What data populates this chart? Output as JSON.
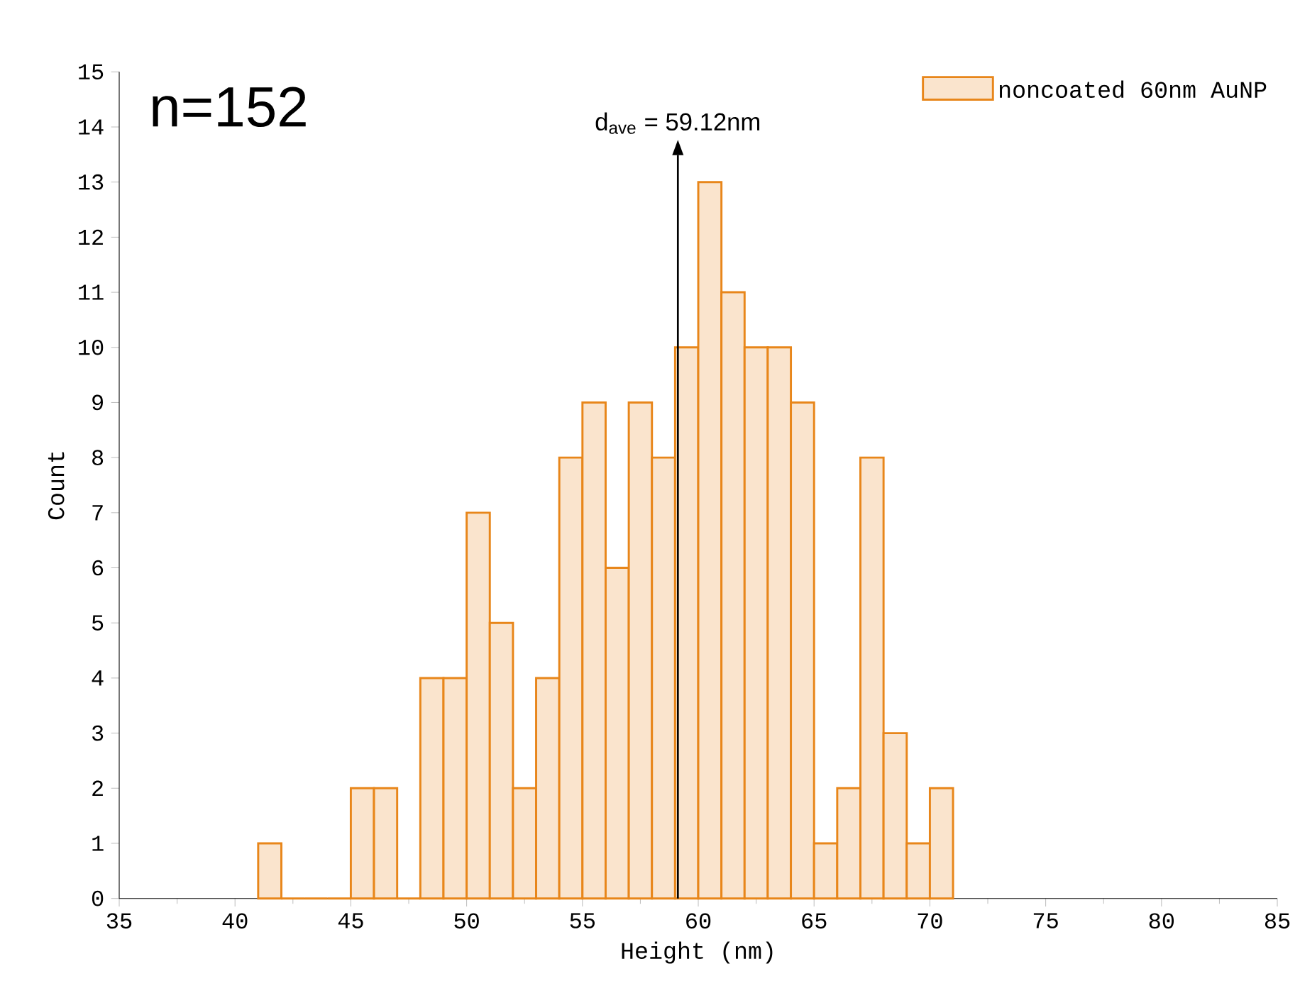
{
  "chart_data": {
    "type": "histogram",
    "xlabel": "Height (nm)",
    "ylabel": "Count",
    "bins": [
      41,
      42,
      43,
      44,
      45,
      46,
      47,
      48,
      49,
      50,
      51,
      52,
      53,
      54,
      55,
      56,
      57,
      58,
      59,
      60,
      61,
      62,
      63,
      64,
      65,
      66,
      67,
      68,
      69,
      70,
      71
    ],
    "series": [
      {
        "name": "noncoated 60nm AuNP",
        "color": "#e8861a",
        "values": [
          1,
          0,
          0,
          0,
          2,
          2,
          0,
          4,
          4,
          7,
          5,
          2,
          4,
          8,
          9,
          6,
          9,
          8,
          10,
          13,
          11,
          10,
          10,
          9,
          1,
          2,
          8,
          3,
          1,
          2
        ]
      }
    ],
    "xlim": [
      35,
      85
    ],
    "xticks": [
      35,
      40,
      45,
      50,
      55,
      60,
      65,
      70,
      75,
      80,
      85
    ],
    "ylim": [
      0,
      15
    ],
    "yticks": [
      0,
      1,
      2,
      3,
      4,
      5,
      6,
      7,
      8,
      9,
      10,
      11,
      12,
      13,
      14,
      15
    ],
    "legend": "top right",
    "grid": false,
    "ref_lines": [
      {
        "axis": "x",
        "value": 59.12,
        "label": "d$_{ave}$ = 59.12nm",
        "color": "#000000"
      }
    ],
    "annotations": [
      "n=152"
    ]
  }
}
